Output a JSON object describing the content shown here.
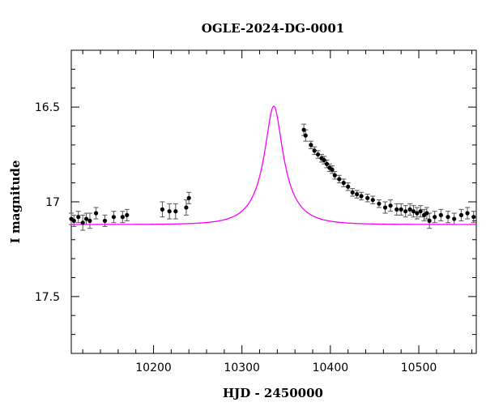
{
  "chart_data": {
    "type": "scatter",
    "title": "OGLE-2024-DG-0001",
    "xlabel": "HJD - 2450000",
    "ylabel": "I magnitude",
    "xlim": [
      10107,
      10565
    ],
    "ylim": [
      17.8,
      16.2
    ],
    "y_inverted": true,
    "x_ticks": [
      10200,
      10300,
      10400,
      10500
    ],
    "x_tick_labels": [
      "10200",
      "10300",
      "10400",
      "10500"
    ],
    "y_ticks": [
      16.5,
      17.0,
      17.5
    ],
    "y_tick_labels": [
      "16.5",
      "17",
      "17.5"
    ],
    "grid": false,
    "legend": "none",
    "colors": {
      "model": "#ff00ff",
      "points": "#000000",
      "errorbars": "#555555",
      "frame": "#000000"
    },
    "model_series": {
      "name": "",
      "t0": 10336,
      "baseline": 17.12,
      "amplitude": 0.625,
      "tE": 34,
      "shape_note": "",
      "x": [
        10107,
        10125,
        10150,
        10175,
        10200,
        10225,
        10250,
        10270,
        10285,
        10300,
        10312,
        10322,
        10330,
        10336,
        10342,
        10350,
        10360,
        10370,
        10380,
        10390,
        10400,
        10415,
        10430,
        10450,
        10475,
        10500,
        10530,
        10565
      ],
      "y": [
        17.104,
        17.1,
        17.092,
        17.081,
        17.063,
        17.033,
        16.976,
        16.899,
        16.81,
        16.693,
        16.592,
        16.526,
        16.5,
        16.495,
        16.502,
        16.531,
        16.591,
        16.671,
        16.755,
        16.834,
        16.899,
        16.974,
        17.025,
        17.063,
        17.085,
        17.094,
        17.101,
        17.105
      ]
    },
    "data_series": {
      "name": "",
      "x": [
        10107,
        10110,
        10115,
        10120,
        10124,
        10128,
        10135,
        10145,
        10155,
        10165,
        10170,
        10210,
        10218,
        10225,
        10237,
        10240,
        10370,
        10372,
        10378,
        10382,
        10386,
        10390,
        10393,
        10396,
        10399,
        10402,
        10405,
        10410,
        10415,
        10420,
        10425,
        10430,
        10435,
        10442,
        10448,
        10455,
        10462,
        10468,
        10475,
        10480,
        10485,
        10490,
        10494,
        10498,
        10502,
        10506,
        10509,
        10512,
        10518,
        10525,
        10533,
        10540,
        10548,
        10555,
        10562
      ],
      "y": [
        17.09,
        17.1,
        17.08,
        17.11,
        17.09,
        17.1,
        17.06,
        17.1,
        17.08,
        17.08,
        17.07,
        17.04,
        17.05,
        17.05,
        17.03,
        16.98,
        16.62,
        16.65,
        16.7,
        16.73,
        16.75,
        16.77,
        16.78,
        16.8,
        16.82,
        16.83,
        16.86,
        16.88,
        16.9,
        16.92,
        16.95,
        16.96,
        16.97,
        16.98,
        16.99,
        17.01,
        17.03,
        17.02,
        17.04,
        17.04,
        17.05,
        17.04,
        17.05,
        17.06,
        17.05,
        17.07,
        17.06,
        17.1,
        17.08,
        17.07,
        17.08,
        17.09,
        17.07,
        17.06,
        17.08
      ],
      "yerr": [
        0.03,
        0.03,
        0.03,
        0.04,
        0.03,
        0.04,
        0.03,
        0.03,
        0.03,
        0.03,
        0.03,
        0.04,
        0.04,
        0.04,
        0.04,
        0.03,
        0.03,
        0.03,
        0.02,
        0.02,
        0.02,
        0.02,
        0.02,
        0.02,
        0.02,
        0.02,
        0.02,
        0.02,
        0.02,
        0.02,
        0.02,
        0.02,
        0.02,
        0.02,
        0.02,
        0.02,
        0.03,
        0.03,
        0.03,
        0.03,
        0.03,
        0.03,
        0.03,
        0.03,
        0.03,
        0.03,
        0.03,
        0.04,
        0.03,
        0.03,
        0.03,
        0.03,
        0.03,
        0.03,
        0.03
      ]
    }
  }
}
